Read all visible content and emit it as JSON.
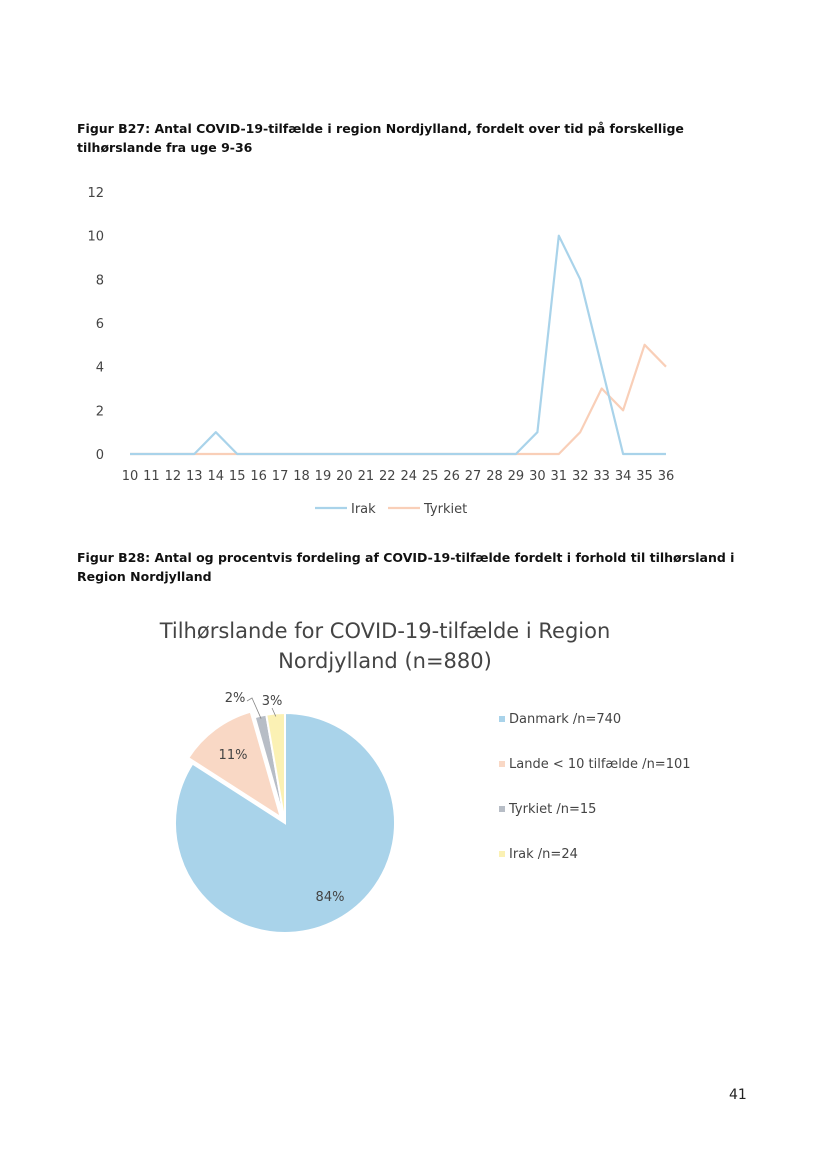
{
  "figure1": {
    "caption": "Figur B27: Antal COVID-19-tilfælde i region Nordjylland, fordelt over tid på forskellige tilhørslande fra uge 9-36"
  },
  "figure2": {
    "caption": "Figur B28: Antal og procentvis fordeling af COVID-19-tilfælde fordelt i forhold til tilhørsland i Region Nordjylland"
  },
  "page_number": "41",
  "colors": {
    "irak_line": "#a9d3ea",
    "tyrkiet_line": "#f9cfb8",
    "danmark": "#a9d3ea",
    "lande": "#f9d8c5",
    "tyrkiet": "#b7bdc6",
    "irak": "#fbf1b4"
  },
  "chart_data": [
    {
      "type": "line",
      "x": [
        "10",
        "11",
        "12",
        "13",
        "14",
        "15",
        "16",
        "17",
        "18",
        "19",
        "20",
        "21",
        "22",
        "24",
        "25",
        "26",
        "27",
        "28",
        "29",
        "30",
        "31",
        "32",
        "33",
        "34",
        "35",
        "36"
      ],
      "series": [
        {
          "name": "Irak",
          "values": [
            0,
            0,
            0,
            0,
            1,
            0,
            0,
            0,
            0,
            0,
            0,
            0,
            0,
            0,
            0,
            0,
            0,
            0,
            0,
            1,
            10,
            8,
            4,
            0,
            0,
            0
          ]
        },
        {
          "name": "Tyrkiet",
          "values": [
            0,
            0,
            0,
            0,
            0,
            0,
            0,
            0,
            0,
            0,
            0,
            0,
            0,
            0,
            0,
            0,
            0,
            0,
            0,
            0,
            0,
            1,
            3,
            2,
            5,
            4
          ]
        }
      ],
      "ylim": [
        0,
        12
      ],
      "yticks": [
        "0",
        "2",
        "4",
        "6",
        "8",
        "10",
        "12"
      ],
      "legend_position": "bottom",
      "grid": false
    },
    {
      "type": "pie",
      "title_line1": "Tilhørslande for COVID-19-tilfælde i Region",
      "title_line2": "Nordjylland (n=880)",
      "slices": [
        {
          "label": "Danmark /n=740",
          "value": 740,
          "pct_label": "84%"
        },
        {
          "label": "Lande < 10 tilfælde /n=101",
          "value": 101,
          "pct_label": "11%"
        },
        {
          "label": "Tyrkiet /n=15",
          "value": 15,
          "pct_label": "2%"
        },
        {
          "label": "Irak /n=24",
          "value": 24,
          "pct_label": "3%"
        }
      ],
      "legend_position": "right"
    }
  ]
}
